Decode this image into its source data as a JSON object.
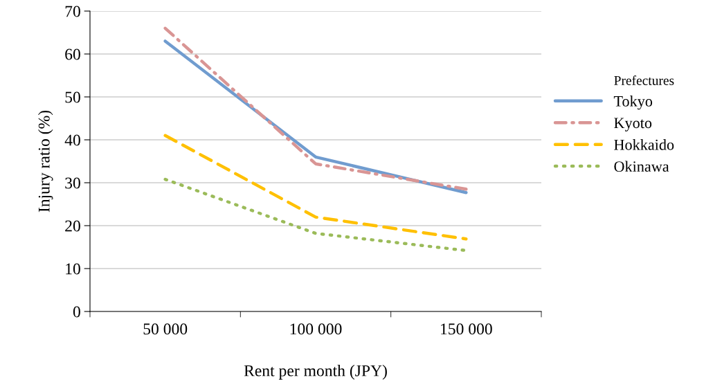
{
  "chart_data": {
    "type": "line",
    "xlabel": "Rent per month (JPY)",
    "ylabel": "Injury ratio (%)",
    "legend_title": "Prefectures",
    "categories": [
      "50 000",
      "100 000",
      "150 000"
    ],
    "series": [
      {
        "name": "Tokyo",
        "color": "#709ccf",
        "line_style": "solid",
        "values": [
          63,
          36,
          27.7
        ]
      },
      {
        "name": "Kyoto",
        "color": "#d99594",
        "line_style": "dashdot",
        "values": [
          66,
          34.4,
          28.5
        ]
      },
      {
        "name": "Hokkaido",
        "color": "#ffc000",
        "line_style": "dashed",
        "values": [
          41,
          22,
          16.9
        ]
      },
      {
        "name": "Okinawa",
        "color": "#9bbb59",
        "line_style": "dotted",
        "values": [
          30.8,
          18.2,
          14.2
        ]
      }
    ],
    "ylim": [
      0,
      70
    ],
    "yticks": [
      0,
      10,
      20,
      30,
      40,
      50,
      60,
      70
    ],
    "grid": "y",
    "legend": "right",
    "marker": "none"
  }
}
